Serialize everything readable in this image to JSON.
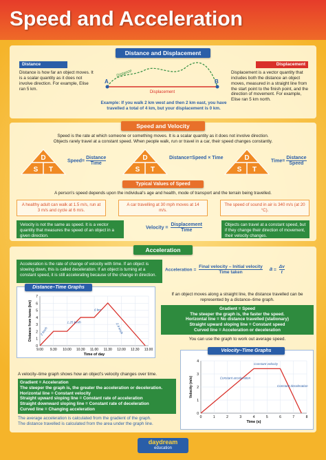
{
  "header": {
    "title": "Speed and Acceleration"
  },
  "distance_displacement": {
    "heading": "Distance and Displacement",
    "distance": {
      "label": "Distance",
      "text": "Distance is how far an object moves. It is a scalar quantity as it does not involve direction. For example, Elise ran 5 km."
    },
    "displacement": {
      "label": "Displacement",
      "text": "Displacement is a vector quantity that includes both the distance an object moves, measured in a straight line from the start point to the finish point, and the direction of movement. For example, Elise ran 5 km north."
    },
    "diagram": {
      "start": "A",
      "end": "B",
      "path_label": "Distance",
      "line_label": "Displacement",
      "example": "Example: If you walk 2 km west and then 2 km east, you have travelled a total of 4 km, but your displacement is 0 km."
    }
  },
  "speed_velocity": {
    "heading": "Speed and Velocity",
    "intro": [
      "Speed is the rate at which someone or something moves. It is a scalar quantity as it does not involve direction.",
      "Objects rarely travel at a constant speed. When people walk, run or travel in a car, their speed changes constantly."
    ],
    "triangles": [
      {
        "top": "D",
        "left": "S",
        "right": "T",
        "lhs": "Speed",
        "numerator": "Distance",
        "denominator": "Time"
      },
      {
        "top": "D",
        "left": "S",
        "right": "T",
        "lhs": "Distance",
        "product": "Speed × Time"
      },
      {
        "top": "D",
        "left": "S",
        "right": "T",
        "lhs": "Time",
        "numerator": "Distance",
        "denominator": "Speed"
      }
    ],
    "equals": "=",
    "typical": {
      "heading": "Typical Values of Speed",
      "intro": "A person's speed depends upon the individual's age and health, mode of transport and the terrain being travelled.",
      "examples": [
        "A healthy adult can walk at 1.5 m/s, run at 3 m/s and cycle at 6 m/s.",
        "A car travelling at 30 mph moves at 14 m/s.",
        "The speed of sound in air is 340 m/s (at 20 °C)."
      ]
    },
    "velocity": {
      "left": "Velocity is not the same as speed. It is a vector quantity that measures the speed of an object in a given direction.",
      "lhs": "Velocity",
      "numerator": "Displacement",
      "denominator": "Time",
      "right": "Objects can travel at a constant speed, but if they change their direction of movement, their velocity changes."
    }
  },
  "acceleration": {
    "heading": "Acceleration",
    "definition": "Acceleration is the rate of change of velocity with time. If an object is slowing down, this is called deceleration. If an object is turning at a constant speed, it is still accelerating because of the change in direction.",
    "formula": {
      "lhs": "Acceleration",
      "numerator": "Final velocity – Initial velocity",
      "denominator": "Time taken",
      "symbol": "a",
      "symbol_numerator": "Δv",
      "symbol_denominator": "t"
    },
    "distance_time": {
      "title": "Distance–Time Graphs",
      "y_label": "Distance from home (km)",
      "x_label": "Time of day",
      "xticks": [
        "9.00",
        "9.30",
        "10.00",
        "10.30",
        "11.00",
        "11.30",
        "12.00",
        "12.30",
        "13.00"
      ],
      "yticks": [
        "0",
        "1",
        "2",
        "3",
        "4",
        "5",
        "6",
        "7"
      ],
      "annotations": [
        "2 km/h",
        "1.25 km/h",
        "6 km",
        "2.4 km/h"
      ],
      "notes": {
        "intro": "If an object moves along a straight line, the distance travelled can be represented by a distance–time graph.",
        "items": [
          "Gradient = Speed",
          "The steeper the graph is, the faster the speed.",
          "Horizontal line = No distance travelled (stationary)",
          "Straight upward sloping line = Constant speed",
          "Curved line = Acceleration or deceleration"
        ],
        "outro": "You can use the graph to work out average speed."
      }
    },
    "velocity_time": {
      "title": "Velocity–Time Graphs",
      "y_label": "Velocity (m/s)",
      "x_label": "Time (s)",
      "xticks": [
        "0",
        "1",
        "2",
        "3",
        "4",
        "5",
        "6",
        "7",
        "8"
      ],
      "yticks": [
        "0",
        "1",
        "2",
        "3",
        "4"
      ],
      "annotations": [
        "Constant velocity",
        "Constant acceleration",
        "Constant deceleration"
      ],
      "notes": {
        "intro": "A velocity–time graph shows how an object's velocity changes over time.",
        "items": [
          "Gradient = Acceleration",
          "The steeper the graph is, the greater the acceleration or deceleration.",
          "Horizontal line = Constant velocity",
          "Straight upward sloping line = Constant rate of acceleration",
          "Straight downward sloping line = Constant rate of deceleration",
          "Curved line = Changing acceleration"
        ],
        "outro": [
          "The average acceleration is calculated from the gradient of the graph.",
          "The distance travelled is calculated from the area under the graph line."
        ]
      }
    }
  },
  "footer": {
    "brand": "daydream",
    "sub": "education"
  }
}
